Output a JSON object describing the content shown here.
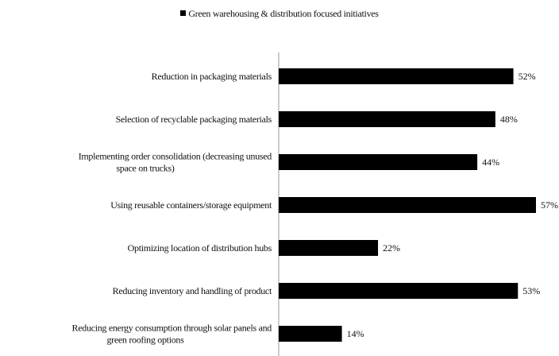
{
  "chart_data": {
    "type": "bar",
    "orientation": "horizontal",
    "legend": {
      "position": "top",
      "entries": [
        "Green warehousing & distribution focused initiatives"
      ]
    },
    "series": [
      {
        "name": "Green warehousing & distribution focused initiatives",
        "color": "#000000",
        "values": [
          52,
          48,
          44,
          57,
          22,
          53,
          14
        ],
        "labels": [
          "52%",
          "48%",
          "44%",
          "57%",
          "22%",
          "53%",
          "14%"
        ]
      }
    ],
    "categories": [
      [
        "Reduction in packaging materials"
      ],
      [
        "Selection of recyclable packaging materials"
      ],
      [
        "Implementing order consolidation (decreasing unused",
        "space on trucks)"
      ],
      [
        "Using reusable containers/storage equipment"
      ],
      [
        "Optimizing location of distribution hubs"
      ],
      [
        "Reducing inventory and handling of product"
      ],
      [
        "Reducing energy consumption through solar panels and",
        "green roofing options"
      ]
    ],
    "xlim": [
      0,
      57
    ],
    "grid": false
  }
}
